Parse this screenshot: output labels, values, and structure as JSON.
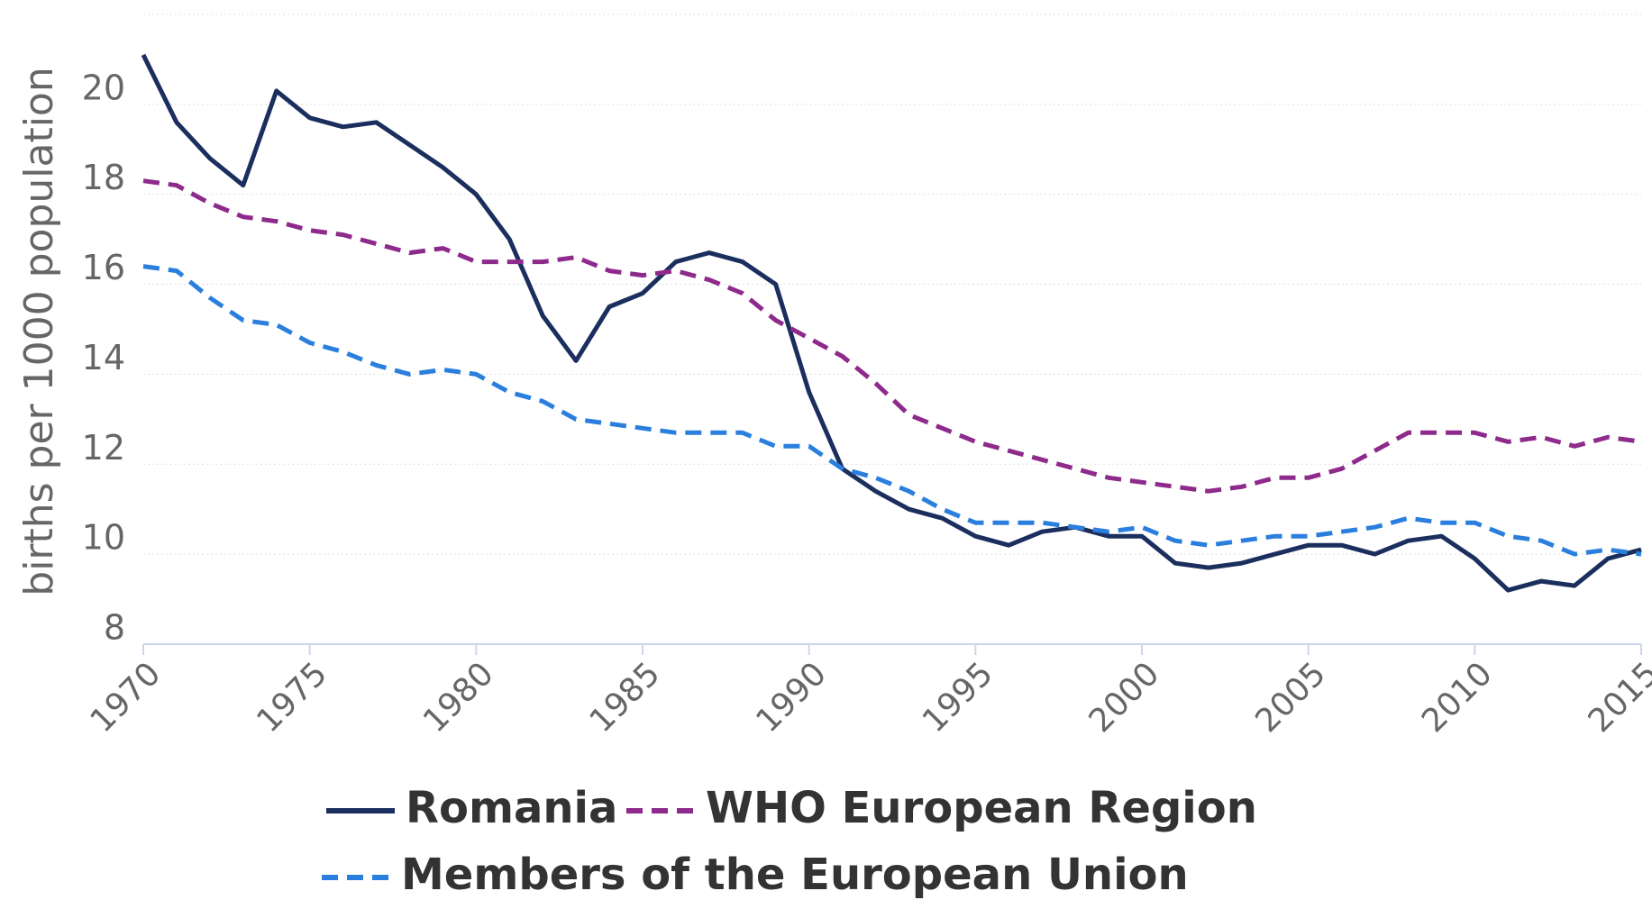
{
  "chart_data": {
    "type": "line",
    "y_label": "births per 1000 population",
    "x": [
      1970,
      1971,
      1972,
      1973,
      1974,
      1975,
      1976,
      1977,
      1978,
      1979,
      1980,
      1981,
      1982,
      1983,
      1984,
      1985,
      1986,
      1987,
      1988,
      1989,
      1990,
      1991,
      1992,
      1993,
      1994,
      1995,
      1996,
      1997,
      1998,
      1999,
      2000,
      2001,
      2002,
      2003,
      2004,
      2005,
      2006,
      2007,
      2008,
      2009,
      2010,
      2011,
      2012,
      2013,
      2014,
      2015
    ],
    "series": [
      {
        "name": "Romania",
        "color": "#1b2f5e",
        "style": "solid",
        "values": [
          21.1,
          19.6,
          18.8,
          18.2,
          20.3,
          19.7,
          19.5,
          19.6,
          19.1,
          18.6,
          18.0,
          17.0,
          15.3,
          14.3,
          15.5,
          15.8,
          16.5,
          16.7,
          16.5,
          16.0,
          13.6,
          11.9,
          11.4,
          11.0,
          10.8,
          10.4,
          10.2,
          10.5,
          10.6,
          10.4,
          10.4,
          9.8,
          9.7,
          9.8,
          10.0,
          10.2,
          10.2,
          10.0,
          10.3,
          10.4,
          9.9,
          9.2,
          9.4,
          9.3,
          9.9,
          10.1
        ]
      },
      {
        "name": "WHO European Region",
        "color": "#8e2a8b",
        "style": "dashed",
        "values": [
          18.3,
          18.2,
          17.8,
          17.5,
          17.4,
          17.2,
          17.1,
          16.9,
          16.7,
          16.8,
          16.5,
          16.5,
          16.5,
          16.6,
          16.3,
          16.2,
          16.3,
          16.1,
          15.8,
          15.2,
          14.8,
          14.4,
          13.8,
          13.1,
          12.8,
          12.5,
          12.3,
          12.1,
          11.9,
          11.7,
          11.6,
          11.5,
          11.4,
          11.5,
          11.7,
          11.7,
          11.9,
          12.3,
          12.7,
          12.7,
          12.7,
          12.5,
          12.6,
          12.4,
          12.6,
          12.5
        ]
      },
      {
        "name": "Members of the European Union",
        "color": "#2a7fde",
        "style": "dashed",
        "values": [
          16.4,
          16.3,
          15.7,
          15.2,
          15.1,
          14.7,
          14.5,
          14.2,
          14.0,
          14.1,
          14.0,
          13.6,
          13.4,
          13.0,
          12.9,
          12.8,
          12.7,
          12.7,
          12.7,
          12.4,
          12.4,
          11.9,
          11.7,
          11.4,
          11.0,
          10.7,
          10.7,
          10.7,
          10.6,
          10.5,
          10.6,
          10.3,
          10.2,
          10.3,
          10.4,
          10.4,
          10.5,
          10.6,
          10.8,
          10.7,
          10.7,
          10.4,
          10.3,
          10.0,
          10.1,
          10.0
        ]
      }
    ],
    "xlim": [
      1970,
      2015
    ],
    "xticks": [
      1970,
      1975,
      1980,
      1985,
      1990,
      1995,
      2000,
      2005,
      2010,
      2015
    ],
    "ylim": [
      8,
      22
    ],
    "yticks": [
      8,
      10,
      12,
      14,
      16,
      18,
      20
    ],
    "grid": true
  }
}
